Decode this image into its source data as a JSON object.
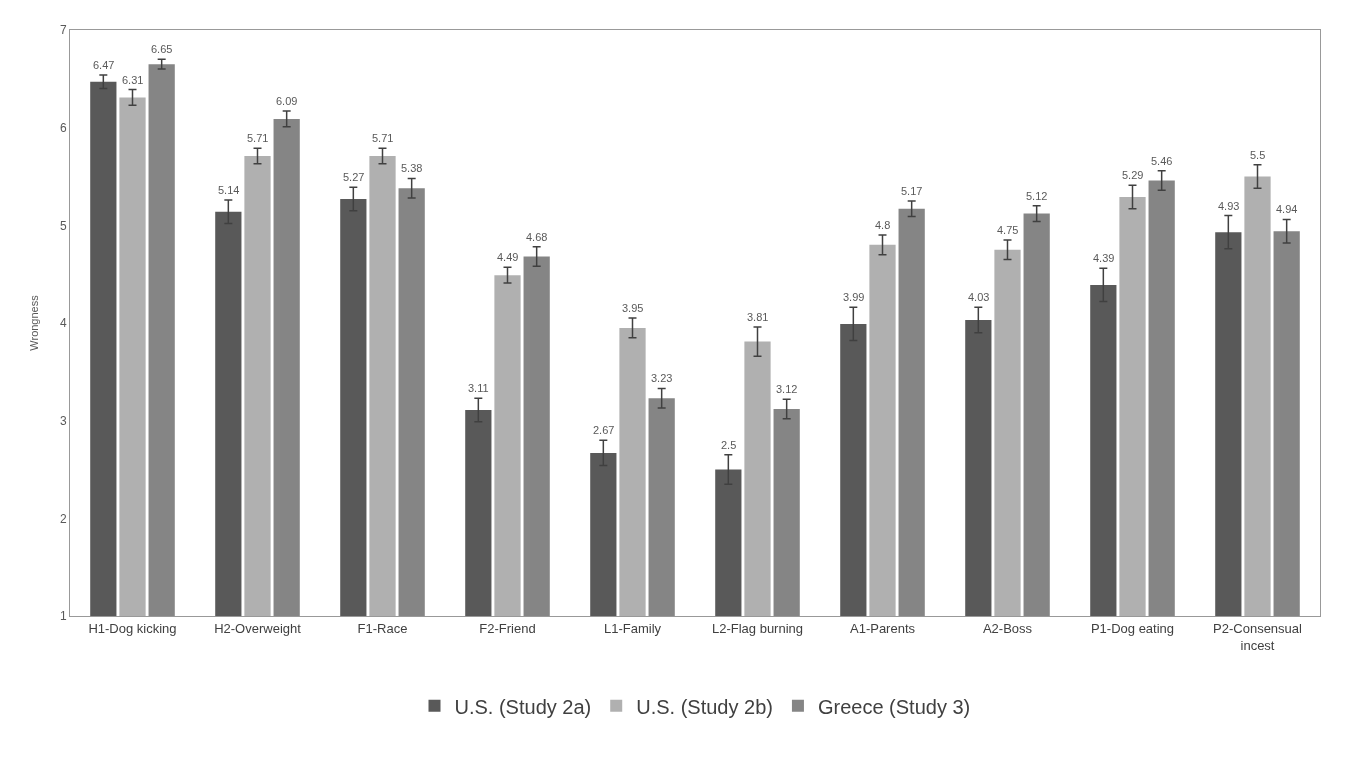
{
  "chart_data": {
    "type": "bar",
    "ylabel": "Wrongness",
    "categories": [
      "H1-Dog kicking",
      "H2-Overweight",
      "F1-Race",
      "F2-Friend",
      "L1-Family",
      "L2-Flag burning",
      "A1-Parents",
      "A2-Boss",
      "P1-Dog eating",
      "P2-Consensual incest"
    ],
    "series": [
      {
        "name": "U.S. (Study 2a)",
        "color": "#595959",
        "values": [
          6.47,
          5.14,
          5.27,
          3.11,
          2.67,
          2.5,
          3.99,
          4.03,
          4.39,
          4.93
        ],
        "errors": [
          0.07,
          0.12,
          0.12,
          0.12,
          0.13,
          0.15,
          0.17,
          0.13,
          0.17,
          0.17
        ]
      },
      {
        "name": "U.S. (Study 2b)",
        "color": "#b0b0b0",
        "values": [
          6.31,
          5.71,
          5.71,
          4.49,
          3.95,
          3.81,
          4.8,
          4.75,
          5.29,
          5.5
        ],
        "errors": [
          0.08,
          0.08,
          0.08,
          0.08,
          0.1,
          0.15,
          0.1,
          0.1,
          0.12,
          0.12
        ]
      },
      {
        "name": "Greece (Study 3)",
        "color": "#858585",
        "values": [
          6.65,
          6.09,
          5.38,
          4.68,
          3.23,
          3.12,
          5.17,
          5.12,
          5.46,
          4.94
        ],
        "errors": [
          0.05,
          0.08,
          0.1,
          0.1,
          0.1,
          0.1,
          0.08,
          0.08,
          0.1,
          0.12
        ]
      }
    ],
    "ylim": [
      1,
      7
    ],
    "yticks": [
      1,
      2,
      3,
      4,
      5,
      6,
      7
    ],
    "grid": false,
    "legend": "bottom",
    "data_labels": true
  }
}
